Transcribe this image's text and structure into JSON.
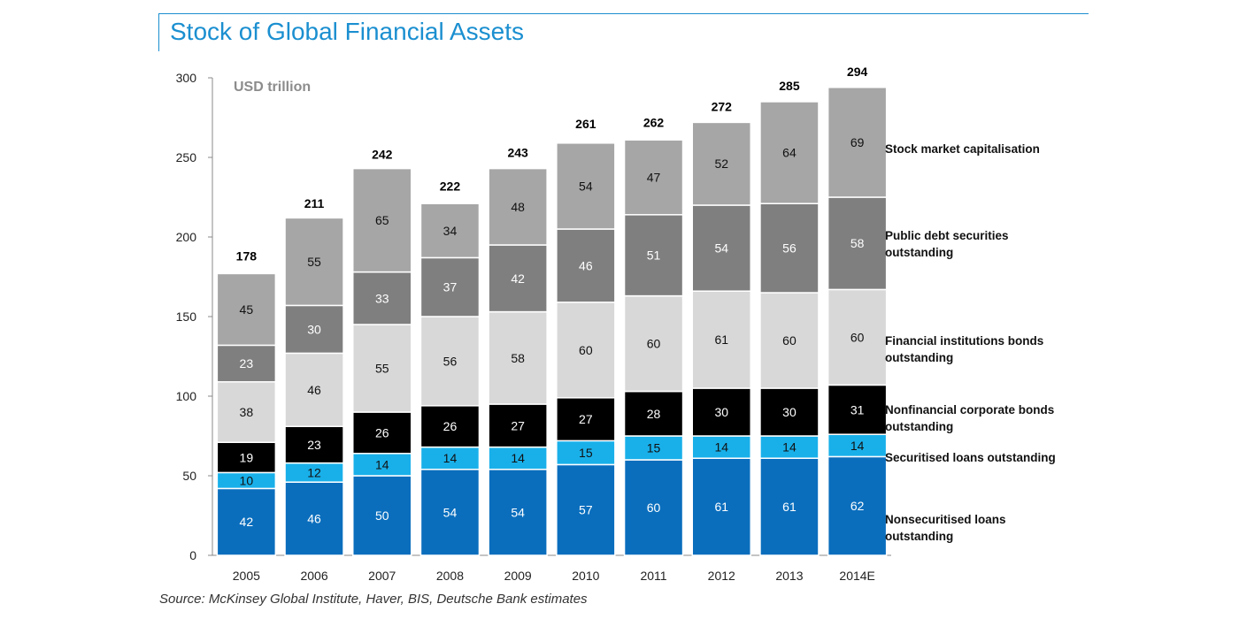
{
  "header": {
    "title": "Stock of Global Financial Assets",
    "unit": "USD trillion",
    "source": "Source: McKinsey Global Institute, Haver, BIS, Deutsche Bank estimates"
  },
  "chart_data": {
    "type": "bar",
    "stacked": true,
    "title": "Stock of Global Financial Assets",
    "ylabel": "USD trillion",
    "ylim": [
      0,
      300
    ],
    "yticks": [
      0,
      50,
      100,
      150,
      200,
      250,
      300
    ],
    "grid": false,
    "legend_placement": "right",
    "categories": [
      "2005",
      "2006",
      "2007",
      "2008",
      "2009",
      "2010",
      "2011",
      "2012",
      "2013",
      "2014E"
    ],
    "totals": [
      178,
      211,
      242,
      222,
      243,
      261,
      262,
      272,
      285,
      294
    ],
    "series": [
      {
        "name": "Nonsecuritised loans outstanding",
        "color": "#0a6ebd",
        "label_color": "#ffffff",
        "values": [
          42,
          46,
          50,
          54,
          54,
          57,
          60,
          61,
          61,
          62
        ]
      },
      {
        "name": "Securitised loans outstanding",
        "color": "#19b0ea",
        "label_color": "#111111",
        "values": [
          10,
          12,
          14,
          14,
          14,
          15,
          15,
          14,
          14,
          14
        ]
      },
      {
        "name": "Nonfinancial corporate bonds outstanding",
        "color": "#000000",
        "label_color": "#ffffff",
        "values": [
          19,
          23,
          26,
          26,
          27,
          27,
          28,
          30,
          30,
          31
        ]
      },
      {
        "name": "Financial institutions bonds outstanding",
        "color": "#d8d8d8",
        "label_color": "#111111",
        "values": [
          38,
          46,
          55,
          56,
          58,
          60,
          60,
          61,
          60,
          60
        ]
      },
      {
        "name": "Public debt securities outstanding",
        "color": "#7f7f7f",
        "label_color": "#ffffff",
        "values": [
          23,
          30,
          33,
          37,
          42,
          46,
          51,
          54,
          56,
          58
        ]
      },
      {
        "name": "Stock market capitalisation",
        "color": "#a6a6a6",
        "label_color": "#111111",
        "values": [
          45,
          55,
          65,
          34,
          48,
          54,
          47,
          52,
          64,
          69
        ]
      }
    ],
    "legend": {
      "stock": [
        "Stock market capitalisation"
      ],
      "public_debt": [
        "Public debt securities",
        "outstanding"
      ],
      "fin_bonds": [
        "Financial institutions bonds",
        "outstanding"
      ],
      "nonfin_bonds": [
        "Nonfinancial corporate bonds",
        "outstanding"
      ],
      "sec_loans": [
        "Securitised loans outstanding"
      ],
      "nonsec_loans": [
        "Nonsecuritised loans",
        "outstanding"
      ]
    }
  }
}
